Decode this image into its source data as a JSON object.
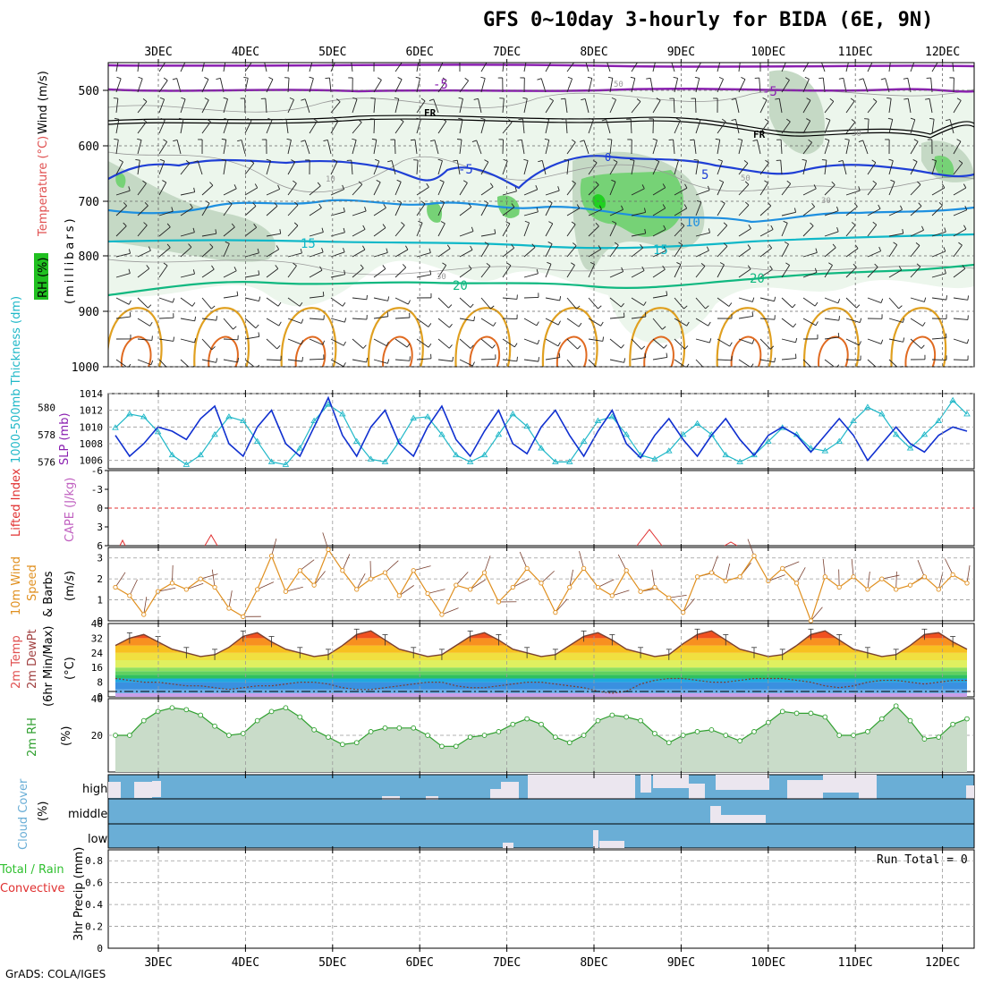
{
  "title": "GFS 0~10day 3-hourly for BIDA (6E, 9N)",
  "footer": "GrADS: COLA/IGES",
  "dates": [
    "3DEC",
    "4DEC",
    "5DEC",
    "6DEC",
    "7DEC",
    "8DEC",
    "9DEC",
    "10DEC",
    "11DEC",
    "12DEC"
  ],
  "colors": {
    "wind_purple": "#8a1fb0",
    "freezing": "#000000",
    "temp_blue": "#1f3fd6",
    "temp_lightblue": "#1e90e0",
    "temp_cyan": "#10b8c8",
    "temp_teal": "#10b880",
    "temp_orange": "#e0a020",
    "rh_light": "#e6f4e6",
    "rh_mid": "#c4d8c4",
    "rh_green": "#70d070",
    "slp": "#1030d0",
    "thickness": "#20b8c8",
    "lifted_index": "#e03030",
    "wind10m": "#e09020",
    "rh2m": "#30a030",
    "cloud": "#6aaed6"
  },
  "panels": {
    "upper_air": {
      "ylabels": [
        {
          "text": "RH (%)",
          "color": "#30c030"
        },
        {
          "text": "Temperature (°C)",
          "color": "#e05050"
        },
        {
          "text": "Wind (m/s)",
          "color": "#000000"
        },
        {
          "text": "(millibars)",
          "color": "#000000"
        }
      ],
      "pressure_ticks": [
        "500",
        "600",
        "700",
        "800",
        "900",
        "1000"
      ],
      "contour_labels": [
        "-5",
        "-5",
        "FR",
        "FR",
        "-5",
        "5",
        "10",
        "15",
        "15",
        "20",
        "20",
        "0",
        "50",
        "30",
        "30",
        "10",
        "50",
        "30"
      ]
    },
    "slp": {
      "ylabel_left": "1000-500mb Thickness (dm)",
      "ylabel_right": "SLP (mb)",
      "left_ticks": [
        "580",
        "578",
        "576"
      ],
      "right_ticks": [
        "1014",
        "1012",
        "1010",
        "1008",
        "1006"
      ]
    },
    "cape": {
      "ylabel_left": "Lifted Index",
      "ylabel_right": "CAPE (J/kg)",
      "ticks": [
        "-6",
        "-3",
        "0",
        "3",
        "6"
      ]
    },
    "wind10m": {
      "ylabel": "10m Wind Speed & Barbs (m/s)",
      "ticks": [
        "3",
        "2",
        "1",
        "0"
      ]
    },
    "temp2m": {
      "ylabel": "2m Temp 2m DewPt (6hr Min/Max) (°C)",
      "ticks": [
        "40",
        "32",
        "24",
        "16",
        "8",
        "0"
      ]
    },
    "rh2m": {
      "ylabel": "2m RH (%)",
      "ticks": [
        "40",
        "20"
      ]
    },
    "cloud": {
      "ylabel": "Cloud Cover (%)",
      "levels": [
        "high",
        "middle",
        "low"
      ]
    },
    "precip": {
      "ylabel": "3hr Precip (mm)",
      "legend": [
        "Total / Rain",
        "Convective"
      ],
      "run_total": "Run Total = 0",
      "ticks": [
        "0.8",
        "0.6",
        "0.4",
        "0.2",
        "0"
      ]
    }
  },
  "chart_data": [
    {
      "type": "line",
      "title": "SLP and 1000-500mb Thickness",
      "series": [
        {
          "name": "SLP (mb)",
          "values": [
            1009,
            1006.5,
            1008,
            1010,
            1009.5,
            1008.5,
            1011,
            1012.5,
            1008,
            1006.5,
            1010,
            1012,
            1008,
            1006.5,
            1010,
            1013.5,
            1009,
            1006.5,
            1010,
            1012,
            1008,
            1006.5,
            1010,
            1012.5,
            1008.5,
            1006.5,
            1009.5,
            1012,
            1008,
            1006.8,
            1010,
            1012,
            1009,
            1006.5,
            1009.5,
            1012,
            1008,
            1006.3,
            1009,
            1011,
            1008.5,
            1006.5,
            1009,
            1011,
            1008.5,
            1006.6,
            1009,
            1010,
            1009,
            1007,
            1009,
            1011,
            1009,
            1006,
            1008,
            1010,
            1008,
            1007,
            1009,
            1010,
            1009.5
          ]
        },
        {
          "name": "1000-500mb Thickness (dm)",
          "values": [
            578.5,
            579.5,
            579.3,
            578.2,
            576.5,
            575.8,
            576.5,
            578,
            579.3,
            579,
            577.5,
            576,
            575.8,
            577,
            579,
            580.2,
            579.5,
            577.5,
            576.2,
            576,
            577.5,
            579.2,
            579.3,
            578,
            576.5,
            576,
            576.5,
            578,
            579.5,
            578.6,
            577,
            576,
            576,
            577.5,
            579,
            579.3,
            578,
            576.5,
            576.2,
            576.8,
            578,
            578.8,
            578,
            576.5,
            576,
            576.5,
            577.5,
            578.5,
            578,
            577,
            576.8,
            577.5,
            579,
            580,
            579.5,
            578,
            577,
            578,
            579,
            580.5,
            579.5
          ]
        }
      ],
      "ylim_left": [
        575.5,
        581
      ],
      "ylim_right": [
        1005,
        1014
      ]
    },
    {
      "type": "line",
      "title": "10m Wind Speed (m/s)",
      "series": [
        {
          "name": "10m Wind Speed (m/s)",
          "values": [
            1.6,
            1.2,
            0.3,
            1.4,
            1.8,
            1.5,
            2.0,
            1.6,
            0.6,
            0.2,
            1.5,
            3.1,
            1.4,
            2.4,
            1.7,
            3.4,
            2.4,
            1.5,
            2.0,
            2.3,
            1.2,
            2.4,
            1.3,
            0.3,
            1.7,
            1.5,
            2.3,
            0.9,
            1.6,
            2.5,
            1.8,
            0.4,
            1.6,
            2.5,
            1.6,
            1.2,
            2.4,
            1.4,
            1.6,
            1.1,
            0.4,
            2.1,
            2.3,
            1.9,
            2.1,
            3.1,
            1.9,
            2.5,
            1.8,
            0.0,
            2.1,
            1.6,
            2.1,
            1.5,
            2.0,
            1.5,
            1.7,
            2.1,
            1.5,
            2.2,
            1.8
          ]
        }
      ],
      "ylim": [
        0,
        3.5
      ]
    },
    {
      "type": "area",
      "title": "2m Temperature (°C)",
      "series": [
        {
          "name": "2m Temp",
          "values": [
            28,
            32,
            34,
            30,
            26,
            24,
            22,
            23,
            27,
            33,
            35,
            30,
            26,
            24,
            22,
            23,
            28,
            34,
            36,
            31,
            26,
            24,
            22,
            23,
            28,
            33,
            35,
            31,
            26,
            24,
            22,
            23,
            28,
            33,
            35,
            31,
            26,
            24,
            22,
            23,
            29,
            34,
            36,
            31,
            26,
            24,
            22,
            23,
            28,
            34,
            36,
            31,
            26,
            24,
            22,
            23,
            28,
            34,
            35,
            30,
            26
          ]
        },
        {
          "name": "2m DewPt",
          "values": [
            10,
            9,
            8,
            8,
            7,
            6,
            6,
            5,
            4,
            5,
            6,
            6,
            7,
            8,
            8,
            7,
            5,
            4,
            4,
            5,
            6,
            7,
            8,
            8,
            6,
            5,
            5,
            6,
            7,
            8,
            8,
            7,
            6,
            5,
            3,
            2,
            3,
            7,
            9,
            10,
            10,
            9,
            8,
            8,
            9,
            10,
            10,
            10,
            9,
            8,
            6,
            5,
            6,
            8,
            9,
            9,
            8,
            7,
            8,
            9,
            9
          ]
        }
      ],
      "ylim": [
        0,
        40
      ]
    },
    {
      "type": "area",
      "title": "2m RH (%)",
      "series": [
        {
          "name": "2m RH",
          "values": [
            20,
            20,
            28,
            33,
            35,
            34,
            31,
            25,
            20,
            21,
            28,
            33,
            35,
            30,
            23,
            19,
            15,
            16,
            22,
            24,
            24,
            24,
            20,
            14,
            14,
            19,
            20,
            22,
            26,
            29,
            26,
            19,
            16,
            20,
            28,
            31,
            30,
            28,
            21,
            16,
            20,
            22,
            23,
            20,
            17,
            22,
            27,
            33,
            32,
            32,
            30,
            20,
            20,
            22,
            29,
            36,
            28,
            18,
            19,
            26,
            29
          ]
        }
      ],
      "ylim": [
        0,
        40
      ]
    },
    {
      "type": "bar",
      "title": "3hr Precip (mm)",
      "series": [
        {
          "name": "Total / Rain",
          "values": [
            0,
            0,
            0,
            0,
            0,
            0,
            0,
            0,
            0,
            0
          ]
        },
        {
          "name": "Convective",
          "values": [
            0,
            0,
            0,
            0,
            0,
            0,
            0,
            0,
            0,
            0
          ]
        }
      ],
      "ylim": [
        0,
        0.9
      ]
    }
  ]
}
